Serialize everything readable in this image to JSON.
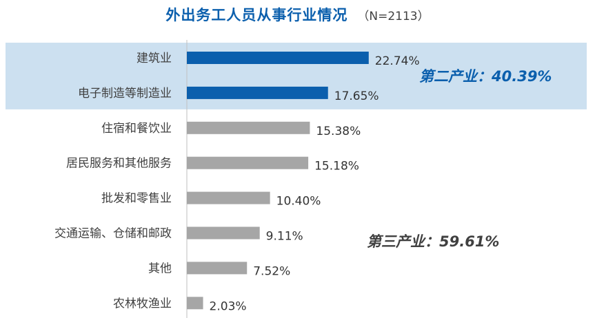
{
  "chart_data": {
    "type": "bar",
    "orientation": "horizontal",
    "title": "外出务工人员从事行业情况",
    "subtitle": "（N=2113）",
    "categories": [
      "建筑业",
      "电子制造等制造业",
      "住宿和餐饮业",
      "居民服务和其他服务",
      "批发和零售业",
      "交通运输、仓储和邮政",
      "其他",
      "农林牧渔业"
    ],
    "values": [
      22.74,
      17.65,
      15.38,
      15.18,
      10.4,
      9.11,
      7.52,
      2.03
    ],
    "value_labels": [
      "22.74%",
      "17.65%",
      "15.38%",
      "15.18%",
      "10.40%",
      "9.11%",
      "7.52%",
      "2.03%"
    ],
    "groups": [
      {
        "label": "第二产业：40.39%",
        "members": [
          0,
          1
        ],
        "bar_color": "#0B5FAD",
        "highlight_color": "#CCE0F0",
        "label_color": "#0B5FAD"
      },
      {
        "label": "第三产业：59.61%",
        "members": [
          2,
          3,
          4,
          5,
          6,
          7
        ],
        "bar_color": "#A6A6A6",
        "label_color": "#404040"
      }
    ],
    "xlim": [
      0,
      25
    ],
    "grid": false,
    "legend": "none"
  }
}
